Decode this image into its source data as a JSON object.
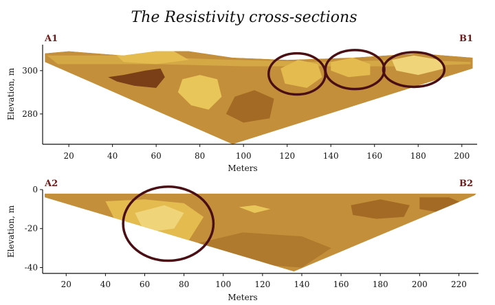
{
  "chart_data": [
    {
      "type": "heatmap",
      "title": "The Resistivity cross-sections",
      "xlabel": "Meters",
      "ylabel": "Elevation, m",
      "xlim": [
        8,
        207
      ],
      "ylim": [
        266,
        312
      ],
      "x_ticks": [
        20,
        40,
        60,
        80,
        100,
        120,
        140,
        160,
        180,
        200
      ],
      "y_ticks": [
        280,
        300
      ],
      "start_label": "A1",
      "end_label": "B1",
      "section_top": [
        [
          9,
          308
        ],
        [
          20,
          309
        ],
        [
          45,
          307
        ],
        [
          60,
          309
        ],
        [
          75,
          309
        ],
        [
          95,
          306
        ],
        [
          120,
          305
        ],
        [
          150,
          306
        ],
        [
          180,
          308
        ],
        [
          205,
          306
        ]
      ],
      "section_bottom": [
        [
          9,
          304
        ],
        [
          95,
          266
        ],
        [
          205,
          301
        ]
      ],
      "regions": [
        {
          "color": "#d4a844",
          "points": [
            [
              10,
              307
            ],
            [
              45,
              307
            ],
            [
              65,
              306
            ],
            [
              95,
              305
            ],
            [
              135,
              304
            ],
            [
              175,
              305
            ],
            [
              204,
              304
            ],
            [
              204,
              303
            ],
            [
              170,
              302
            ],
            [
              140,
              302
            ],
            [
              100,
              302
            ],
            [
              60,
              303
            ],
            [
              15,
              303
            ]
          ]
        },
        {
          "color": "#e3bb4f",
          "points": [
            [
              40,
              309
            ],
            [
              55,
              310
            ],
            [
              68,
              309
            ],
            [
              75,
              305
            ],
            [
              60,
              303
            ],
            [
              45,
              304
            ]
          ]
        },
        {
          "color": "#7a3f16",
          "points": [
            [
              38,
              297
            ],
            [
              45,
              298
            ],
            [
              55,
              300
            ],
            [
              62,
              301
            ],
            [
              64,
              297
            ],
            [
              60,
              292
            ],
            [
              50,
              293
            ],
            [
              42,
              295
            ]
          ]
        },
        {
          "color": "#e8c65a",
          "points": [
            [
              72,
              296
            ],
            [
              80,
              298
            ],
            [
              88,
              296
            ],
            [
              90,
              288
            ],
            [
              84,
              282
            ],
            [
              76,
              284
            ],
            [
              70,
              290
            ]
          ]
        },
        {
          "color": "#e3bb4f",
          "points": [
            [
              117,
              301
            ],
            [
              125,
              305
            ],
            [
              134,
              303
            ],
            [
              136,
              297
            ],
            [
              129,
              292
            ],
            [
              119,
              294
            ]
          ]
        },
        {
          "color": "#e3bb4f",
          "points": [
            [
              140,
              304
            ],
            [
              150,
              306
            ],
            [
              158,
              303
            ],
            [
              158,
              298
            ],
            [
              148,
              297
            ],
            [
              140,
              300
            ]
          ]
        },
        {
          "color": "#f0d47a",
          "points": [
            [
              168,
              305
            ],
            [
              178,
              307
            ],
            [
              190,
              305
            ],
            [
              192,
              301
            ],
            [
              180,
              298
            ],
            [
              170,
              300
            ]
          ]
        },
        {
          "color": "#a36a25",
          "points": [
            [
              92,
              280
            ],
            [
              100,
              276
            ],
            [
              112,
              278
            ],
            [
              114,
              287
            ],
            [
              105,
              291
            ],
            [
              96,
              288
            ]
          ]
        }
      ],
      "annotations": [
        {
          "shape": "ellipse",
          "cx": 124.5,
          "cy": 298.5,
          "rx": 13,
          "ry": 9.5
        },
        {
          "shape": "ellipse",
          "cx": 151,
          "cy": 300.5,
          "rx": 13.5,
          "ry": 9
        },
        {
          "shape": "ellipse",
          "cx": 178,
          "cy": 300.5,
          "rx": 14,
          "ry": 8
        }
      ]
    },
    {
      "type": "heatmap",
      "title": "",
      "xlabel": "Meters",
      "ylabel": "Elevation, m",
      "xlim": [
        8,
        230
      ],
      "ylim": [
        -43,
        0
      ],
      "x_ticks": [
        20,
        40,
        60,
        80,
        100,
        120,
        140,
        160,
        180,
        200,
        220
      ],
      "y_ticks": [
        0,
        -20,
        -40
      ],
      "start_label": "A2",
      "end_label": "B2",
      "section_top": [
        [
          9,
          -2
        ],
        [
          229,
          -2
        ]
      ],
      "section_bottom": [
        [
          9,
          -4
        ],
        [
          136,
          -42
        ],
        [
          228,
          -3
        ]
      ],
      "regions": [
        {
          "color": "#e3bb4f",
          "points": [
            [
              40,
              -6
            ],
            [
              60,
              -5
            ],
            [
              80,
              -7
            ],
            [
              90,
              -14
            ],
            [
              80,
              -30
            ],
            [
              70,
              -34
            ],
            [
              55,
              -26
            ],
            [
              45,
              -16
            ]
          ]
        },
        {
          "color": "#f0d47a",
          "points": [
            [
              55,
              -12
            ],
            [
              70,
              -8
            ],
            [
              80,
              -12
            ],
            [
              75,
              -20
            ],
            [
              60,
              -22
            ]
          ]
        },
        {
          "color": "#e8c65a",
          "points": [
            [
              108,
              -9
            ],
            [
              116,
              -8
            ],
            [
              124,
              -10
            ],
            [
              116,
              -12
            ]
          ]
        },
        {
          "color": "#a36a25",
          "points": [
            [
              165,
              -8
            ],
            [
              180,
              -5
            ],
            [
              195,
              -8
            ],
            [
              192,
              -14
            ],
            [
              178,
              -15
            ],
            [
              166,
              -13
            ]
          ]
        },
        {
          "color": "#a36a25",
          "points": [
            [
              200,
              -4
            ],
            [
              215,
              -4
            ],
            [
              222,
              -7
            ],
            [
              212,
              -12
            ],
            [
              200,
              -10
            ]
          ]
        },
        {
          "color": "#b07a2e",
          "points": [
            [
              85,
              -28
            ],
            [
              110,
              -22
            ],
            [
              140,
              -24
            ],
            [
              155,
              -30
            ],
            [
              140,
              -40
            ],
            [
              110,
              -38
            ]
          ]
        }
      ],
      "annotations": [
        {
          "shape": "ellipse",
          "cx": 72,
          "cy": -17.5,
          "rx": 23,
          "ry": 19
        }
      ]
    }
  ]
}
